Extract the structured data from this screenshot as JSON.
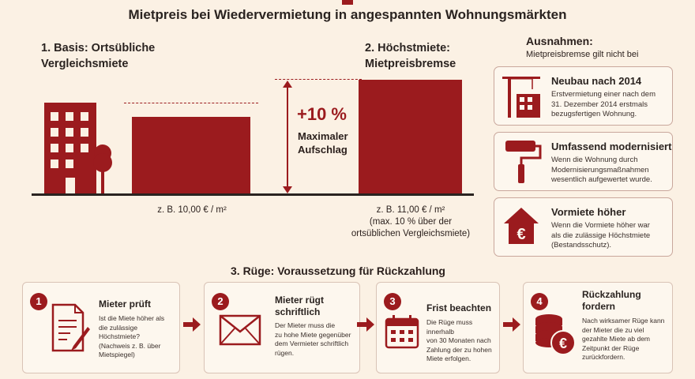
{
  "header": {
    "subtitle": "Mietpreis bei Wiedervermietung in angespannten Wohnungsmärkten"
  },
  "basis": {
    "heading_line1": "1. Basis: Ortsübliche",
    "heading_line2": "Vergleichsmiete",
    "example": "z. B. 10,00 € / m²",
    "value": 10.0
  },
  "increase": {
    "percent": "+10 %",
    "label_line1": "Maximaler",
    "label_line2": "Aufschlag"
  },
  "max": {
    "heading_line1": "2. Höchstmiete:",
    "heading_line2": "Mietpreisbremse",
    "example": "z. B. 11,00 € / m²",
    "note_line1": "(max. 10 % über der",
    "note_line2": "ortsüblichen Vergleichsmiete)",
    "value": 11.0
  },
  "exceptions": {
    "heading": "Ausnahmen:",
    "subheading": "Mietpreisbremse gilt nicht bei",
    "items": [
      {
        "icon": "crane-building-icon",
        "title": "Neubau nach 2014",
        "text": [
          "Erstvermietung einer nach dem",
          "31. Dezember 2014 erstmals",
          "bezugsfertigen Wohnung."
        ]
      },
      {
        "icon": "paint-roller-icon",
        "title": "Umfassend modernisiert",
        "text": [
          "Wenn die Wohnung durch",
          "Modernisierungsmaßnahmen",
          "wesentlich aufgewertet wurde."
        ]
      },
      {
        "icon": "house-euro-icon",
        "title": "Vormiete höher",
        "text": [
          "Wenn die Vormiete höher war",
          "als die zulässige Höchstmiete",
          "(Bestandsschutz)."
        ]
      }
    ]
  },
  "process": {
    "heading": "3. Rüge: Voraussetzung für Rückzahlung",
    "steps": [
      {
        "num": "1",
        "title": [
          "Mieter prüft"
        ],
        "text": [
          "Ist die Miete höher als",
          "die zulässige Höchstmiete?",
          "(Nachweis z. B. über",
          "Mietspiegel)"
        ]
      },
      {
        "num": "2",
        "title": [
          "Mieter rügt",
          "schriftlich"
        ],
        "text": [
          "Der Mieter muss die",
          "zu hohe Miete gegenüber",
          "dem Vermieter schriftlich",
          "rügen."
        ]
      },
      {
        "num": "3",
        "title": [
          "Frist beachten"
        ],
        "text": [
          "Die Rüge muss innerhalb",
          "von 30 Monaten nach",
          "Zahlung der zu hohen",
          "Miete erfolgen."
        ]
      },
      {
        "num": "4",
        "title": [
          "Rückzahlung",
          "fordern"
        ],
        "text": [
          "Nach wirksamer Rüge kann",
          "der Mieter die zu viel",
          "gezahlte Miete ab dem",
          "Zeitpunkt der Rüge",
          "zurückfordern."
        ]
      }
    ]
  },
  "colors": {
    "accent": "#9b1b1e",
    "background": "#fbf1e4"
  }
}
